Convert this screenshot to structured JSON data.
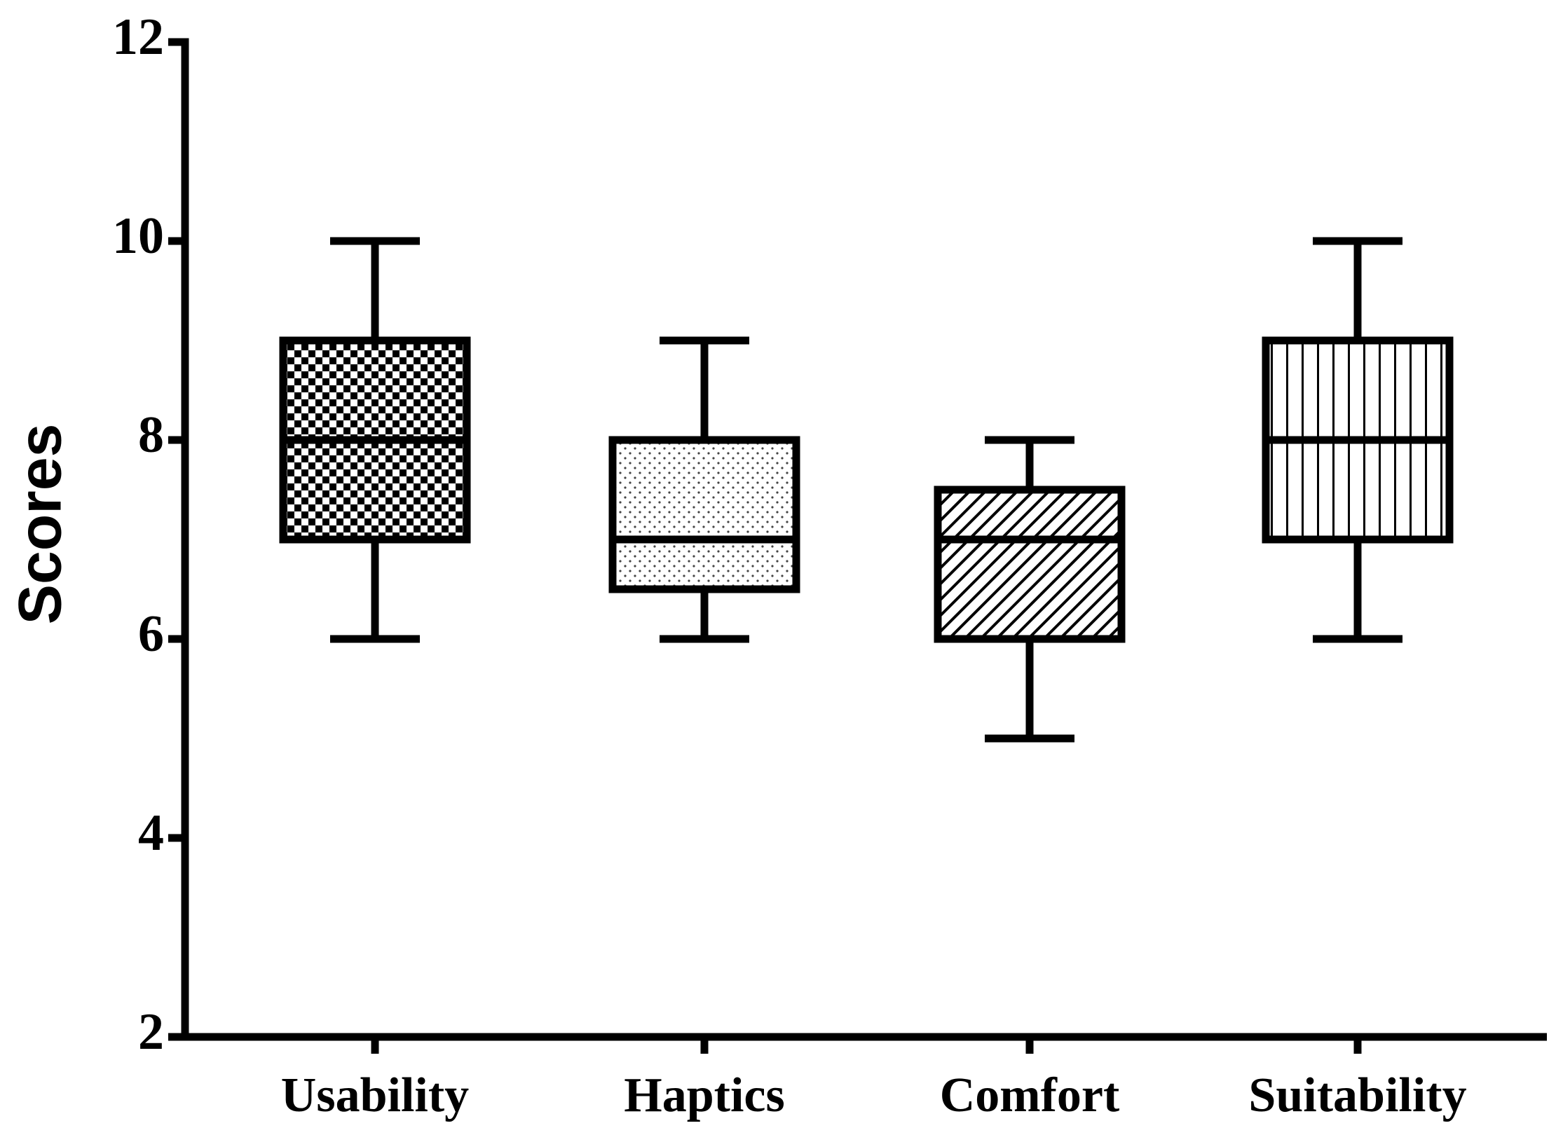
{
  "chart_data": {
    "type": "box",
    "y_label": "Scores",
    "categories": [
      "Usability",
      "Haptics",
      "Comfort",
      "Suitability"
    ],
    "min": [
      6,
      6,
      5,
      6
    ],
    "q1": [
      7,
      6.5,
      6,
      7
    ],
    "median": [
      8,
      7,
      7,
      8
    ],
    "q3": [
      9,
      8,
      7.5,
      9
    ],
    "max": [
      10,
      9,
      8,
      10
    ],
    "patterns": [
      "checker",
      "dots",
      "diagonal",
      "vertical"
    ],
    "color": "#000000",
    "ylim": [
      2,
      12
    ],
    "yticks": [
      2,
      4,
      6,
      8,
      10,
      12
    ]
  }
}
